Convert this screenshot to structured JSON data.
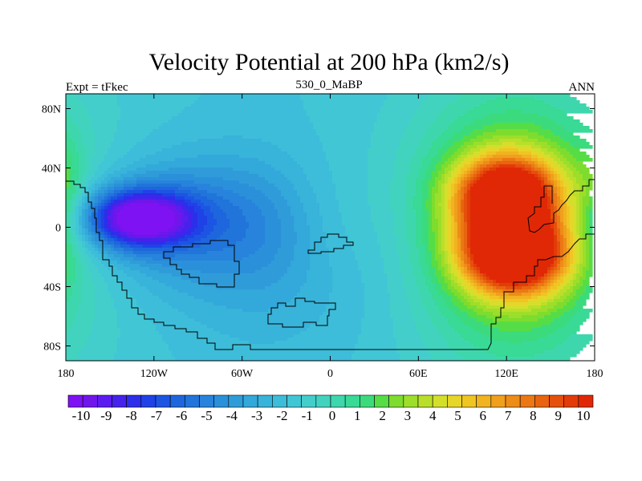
{
  "chart_data": {
    "type": "heatmap",
    "title": "Velocity Potential at 200 hPa (km2/s)",
    "subtitle_left": "Expt = tFkec",
    "subtitle_center": "530_0_MaBP",
    "subtitle_right": "ANN",
    "x_ticks": [
      {
        "value": -180,
        "label": "180"
      },
      {
        "value": -120,
        "label": "120W"
      },
      {
        "value": -60,
        "label": "60W"
      },
      {
        "value": 0,
        "label": "0"
      },
      {
        "value": 60,
        "label": "60E"
      },
      {
        "value": 120,
        "label": "120E"
      },
      {
        "value": 180,
        "label": "180"
      }
    ],
    "y_ticks": [
      {
        "value": 80,
        "label": "80N"
      },
      {
        "value": 40,
        "label": "40N"
      },
      {
        "value": 0,
        "label": "0"
      },
      {
        "value": -40,
        "label": "40S"
      },
      {
        "value": -80,
        "label": "80S"
      }
    ],
    "xlim": [
      -180,
      180
    ],
    "ylim": [
      -90,
      90
    ],
    "field_centers": [
      {
        "lon": -132,
        "lat": 6,
        "value": -10
      },
      {
        "lon": 125,
        "lat": -20,
        "value": 9
      },
      {
        "lon": 120,
        "lat": 20,
        "value": 8
      }
    ],
    "colorbar": {
      "levels": [
        -10,
        -9.5,
        -9,
        -8.5,
        -8,
        -7.5,
        -7,
        -6.5,
        -6,
        -5.5,
        -5,
        -4.5,
        -4,
        -3.5,
        -3,
        -2.5,
        -2,
        -1.5,
        -1,
        -0.5,
        0,
        0.5,
        1,
        1.5,
        2,
        2.5,
        3,
        3.5,
        4,
        4.5,
        5,
        5.5,
        6,
        6.5,
        7,
        7.5,
        8,
        8.5,
        9,
        9.5,
        10
      ],
      "labels": [
        "-10",
        "-9",
        "-8",
        "-7",
        "-6",
        "-5",
        "-4",
        "-3",
        "-2",
        "-1",
        "0",
        "1",
        "2",
        "3",
        "4",
        "5",
        "6",
        "7",
        "8",
        "9",
        "10"
      ],
      "colors": [
        "#7e12f2",
        "#7016ea",
        "#5c1cef",
        "#4622eb",
        "#2c2eea",
        "#1f42e6",
        "#1c55e3",
        "#1e66dd",
        "#2174d9",
        "#2783dc",
        "#2b90da",
        "#2f9cd9",
        "#33a8da",
        "#38b3da",
        "#3dbdd9",
        "#41c6d6",
        "#43cecc",
        "#42d3bf",
        "#3ed7ad",
        "#39d996",
        "#3bdb7d",
        "#56dd46",
        "#7edc2e",
        "#9dde2a",
        "#badf2a",
        "#d4df2b",
        "#e6d629",
        "#efc524",
        "#f1b320",
        "#f0a01c",
        "#ee8c18",
        "#eb7814",
        "#e86410",
        "#e5500c",
        "#e23c08",
        "#e02806"
      ]
    }
  }
}
